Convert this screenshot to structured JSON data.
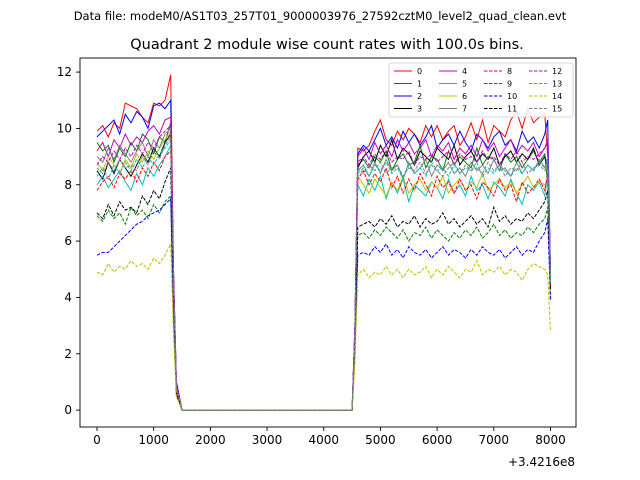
{
  "supertitle": "Data file: modeM0/AS1T03_257T01_9000003976_27592cztM0_level2_quad_clean.evt",
  "chart_data": {
    "type": "line",
    "title": "Quadrant 2 module wise count rates with 100.0s bins.",
    "xlabel": "",
    "ylabel": "",
    "x_offset_label": "+3.4216e8",
    "xlim": [
      -300,
      8450
    ],
    "ylim": [
      -0.6,
      12.5
    ],
    "xticks": [
      0,
      1000,
      2000,
      3000,
      4000,
      5000,
      6000,
      7000,
      8000
    ],
    "yticks": [
      0,
      2,
      4,
      6,
      8,
      10,
      12
    ],
    "grid": false,
    "legend_position": "top-right",
    "x": [
      0,
      100,
      200,
      300,
      400,
      500,
      600,
      700,
      800,
      900,
      1000,
      1100,
      1200,
      1300,
      1350,
      1400,
      1500,
      1600,
      1700,
      1800,
      1900,
      2000,
      2200,
      2500,
      3000,
      3500,
      4000,
      4400,
      4500,
      4550,
      4600,
      4700,
      4800,
      4900,
      5000,
      5100,
      5200,
      5300,
      5400,
      5500,
      5600,
      5700,
      5800,
      5900,
      6000,
      6100,
      6200,
      6300,
      6400,
      6500,
      6600,
      6700,
      6800,
      6900,
      7000,
      7100,
      7200,
      7300,
      7400,
      7500,
      7600,
      7700,
      7800,
      7900,
      7950,
      8000
    ],
    "series": [
      {
        "name": "0",
        "color": "#ff0000",
        "dash": "solid",
        "values": [
          9.9,
          10.1,
          9.7,
          10.2,
          10.0,
          10.9,
          10.8,
          10.7,
          10.4,
          10.2,
          10.9,
          10.8,
          11.0,
          11.9,
          5.0,
          1.0,
          0,
          0,
          0,
          0,
          0,
          0,
          0,
          0,
          0,
          0,
          0,
          0,
          0,
          3.0,
          9.3,
          9.2,
          9.4,
          9.9,
          10.3,
          9.6,
          9.4,
          9.9,
          9.6,
          10.0,
          9.8,
          9.5,
          10.1,
          9.7,
          10.1,
          9.6,
          9.9,
          10.1,
          9.4,
          9.7,
          10.2,
          9.6,
          10.3,
          9.5,
          10.1,
          9.9,
          9.7,
          10.3,
          10.6,
          10.0,
          10.7,
          10.2,
          10.4,
          10.5,
          9.0,
          5.0
        ]
      },
      {
        "name": "1",
        "color": "#008000",
        "dash": "solid",
        "values": [
          9.5,
          9.2,
          9.4,
          8.8,
          9.3,
          9.0,
          9.5,
          9.2,
          9.8,
          9.6,
          9.1,
          9.7,
          9.5,
          10.2,
          4.5,
          0.8,
          0,
          0,
          0,
          0,
          0,
          0,
          0,
          0,
          0,
          0,
          0,
          0,
          0,
          2.8,
          8.7,
          8.9,
          8.6,
          9.0,
          8.8,
          9.2,
          8.5,
          8.9,
          9.1,
          8.7,
          8.8,
          9.4,
          8.6,
          9.0,
          8.9,
          8.5,
          9.2,
          8.7,
          9.0,
          8.8,
          8.6,
          9.3,
          8.7,
          9.0,
          8.9,
          8.5,
          9.1,
          8.8,
          9.0,
          8.6,
          8.9,
          9.2,
          8.8,
          9.1,
          8.0,
          4.6
        ]
      },
      {
        "name": "2",
        "color": "#0000ff",
        "dash": "solid",
        "values": [
          9.7,
          9.9,
          10.1,
          10.3,
          9.8,
          10.5,
          10.2,
          10.6,
          10.4,
          10.0,
          10.8,
          10.9,
          10.7,
          11.0,
          4.9,
          1.0,
          0,
          0,
          0,
          0,
          0,
          0,
          0,
          0,
          0,
          0,
          0,
          0,
          0,
          3.0,
          9.1,
          9.4,
          9.2,
          9.6,
          10.0,
          9.4,
          9.7,
          9.3,
          9.9,
          9.5,
          9.8,
          9.4,
          9.7,
          10.1,
          9.3,
          9.6,
          9.8,
          9.4,
          9.9,
          9.5,
          9.2,
          9.8,
          9.6,
          9.3,
          9.7,
          9.9,
          9.4,
          9.6,
          9.2,
          9.9,
          9.5,
          9.7,
          9.3,
          9.8,
          10.3,
          4.8
        ]
      },
      {
        "name": "3",
        "color": "#000000",
        "dash": "solid",
        "values": [
          8.5,
          8.2,
          8.8,
          8.4,
          8.9,
          8.6,
          8.3,
          8.7,
          9.1,
          8.8,
          9.3,
          9.0,
          9.5,
          9.8,
          4.3,
          0.7,
          0,
          0,
          0,
          0,
          0,
          0,
          0,
          0,
          0,
          0,
          0,
          0,
          0,
          2.7,
          8.6,
          9.0,
          9.2,
          8.8,
          9.4,
          9.0,
          9.6,
          8.9,
          9.3,
          9.1,
          8.7,
          9.2,
          9.0,
          8.8,
          9.3,
          9.1,
          8.9,
          9.4,
          8.7,
          9.0,
          9.2,
          8.8,
          9.1,
          8.9,
          9.3,
          8.7,
          9.0,
          9.2,
          8.8,
          9.1,
          8.9,
          9.3,
          8.7,
          9.0,
          8.6,
          4.5
        ]
      },
      {
        "name": "4",
        "color": "#bf00bf",
        "dash": "solid",
        "values": [
          9.2,
          9.5,
          9.0,
          9.6,
          9.3,
          9.8,
          9.4,
          9.7,
          9.5,
          9.9,
          10.1,
          9.8,
          10.3,
          10.4,
          4.7,
          0.9,
          0,
          0,
          0,
          0,
          0,
          0,
          0,
          0,
          0,
          0,
          0,
          0,
          0,
          2.9,
          9.0,
          9.3,
          8.9,
          9.5,
          9.1,
          9.4,
          9.0,
          9.6,
          9.2,
          9.5,
          9.1,
          9.3,
          9.6,
          9.0,
          9.4,
          9.2,
          9.5,
          8.9,
          9.3,
          9.1,
          9.4,
          9.0,
          9.6,
          9.2,
          9.5,
          9.0,
          9.3,
          9.6,
          9.1,
          9.4,
          9.2,
          9.5,
          9.0,
          9.3,
          9.6,
          4.7
        ]
      },
      {
        "name": "5",
        "color": "#00bfbf",
        "dash": "solid",
        "values": [
          8.0,
          8.3,
          7.9,
          8.2,
          8.5,
          8.1,
          7.8,
          8.4,
          8.0,
          8.6,
          8.3,
          8.7,
          9.0,
          9.4,
          4.2,
          0.7,
          0,
          0,
          0,
          0,
          0,
          0,
          0,
          0,
          0,
          0,
          0,
          0,
          0,
          2.5,
          8.0,
          7.6,
          8.2,
          7.8,
          8.3,
          7.5,
          8.1,
          7.7,
          8.2,
          7.4,
          8.0,
          7.8,
          7.6,
          8.1,
          7.9,
          7.5,
          8.2,
          7.7,
          8.0,
          7.6,
          8.3,
          7.8,
          8.0,
          7.5,
          8.1,
          7.9,
          7.6,
          8.2,
          7.7,
          7.3,
          8.0,
          7.8,
          8.1,
          7.6,
          8.4,
          4.5
        ]
      },
      {
        "name": "6",
        "color": "#bfbf00",
        "dash": "solid",
        "values": [
          8.8,
          8.5,
          9.0,
          8.7,
          8.4,
          8.9,
          8.6,
          9.1,
          8.8,
          9.2,
          8.9,
          9.3,
          9.6,
          9.9,
          4.4,
          0.8,
          0,
          0,
          0,
          0,
          0,
          0,
          0,
          0,
          0,
          0,
          0,
          0,
          0,
          2.6,
          8.3,
          8.0,
          7.7,
          8.2,
          7.9,
          7.6,
          8.1,
          7.8,
          8.3,
          7.7,
          8.0,
          8.2,
          7.8,
          8.1,
          7.9,
          8.3,
          7.7,
          8.0,
          8.2,
          7.8,
          8.1,
          7.9,
          8.4,
          7.8,
          8.0,
          8.2,
          7.9,
          8.1,
          7.7,
          8.0,
          8.3,
          7.9,
          8.1,
          8.0,
          8.2,
          4.4
        ]
      },
      {
        "name": "7",
        "color": "#808080",
        "dash": "solid",
        "values": [
          9.0,
          8.8,
          9.3,
          8.9,
          9.4,
          9.1,
          8.8,
          9.2,
          9.5,
          9.0,
          9.6,
          9.3,
          9.8,
          10.0,
          4.5,
          0.8,
          0,
          0,
          0,
          0,
          0,
          0,
          0,
          0,
          0,
          0,
          0,
          0,
          0,
          2.7,
          8.5,
          8.7,
          8.3,
          8.8,
          8.4,
          8.9,
          8.5,
          8.7,
          8.2,
          8.8,
          8.4,
          8.6,
          8.9,
          8.3,
          8.7,
          8.5,
          8.8,
          8.4,
          8.6,
          8.3,
          8.8,
          8.5,
          8.7,
          8.4,
          8.9,
          8.5,
          8.6,
          8.3,
          8.8,
          8.4,
          8.7,
          8.5,
          8.9,
          8.6,
          8.8,
          4.5
        ]
      },
      {
        "name": "8",
        "color": "#ff0000",
        "dash": "dashed",
        "values": [
          7.8,
          8.1,
          8.3,
          7.9,
          8.4,
          8.2,
          8.5,
          8.1,
          8.6,
          8.3,
          8.8,
          8.5,
          9.0,
          9.2,
          4.1,
          0.7,
          0,
          0,
          0,
          0,
          0,
          0,
          0,
          0,
          0,
          0,
          0,
          0,
          0,
          2.6,
          8.2,
          8.5,
          8.0,
          8.4,
          8.1,
          8.6,
          7.9,
          8.3,
          7.7,
          8.2,
          7.8,
          8.4,
          8.0,
          7.6,
          8.3,
          7.9,
          8.1,
          7.7,
          8.2,
          7.8,
          8.0,
          7.5,
          8.1,
          7.9,
          7.6,
          8.2,
          7.8,
          8.0,
          7.4,
          8.1,
          7.7,
          7.9,
          8.2,
          7.8,
          8.4,
          4.3
        ]
      },
      {
        "name": "9",
        "color": "#008000",
        "dash": "dashed",
        "values": [
          6.9,
          6.7,
          7.1,
          6.8,
          7.0,
          6.6,
          7.2,
          6.9,
          7.1,
          6.8,
          7.3,
          7.0,
          7.4,
          7.6,
          3.4,
          0.6,
          0,
          0,
          0,
          0,
          0,
          0,
          0,
          0,
          0,
          0,
          0,
          0,
          0,
          2.1,
          6.2,
          6.3,
          6.1,
          6.4,
          6.2,
          6.5,
          6.3,
          6.1,
          6.4,
          6.0,
          6.3,
          6.2,
          6.5,
          6.1,
          6.4,
          6.2,
          6.0,
          6.3,
          6.1,
          6.4,
          6.2,
          6.5,
          6.1,
          6.3,
          6.6,
          6.2,
          6.4,
          6.1,
          6.3,
          6.2,
          6.5,
          6.3,
          6.6,
          6.8,
          7.2,
          4.0
        ]
      },
      {
        "name": "10",
        "color": "#0000ff",
        "dash": "dashed",
        "values": [
          5.5,
          5.6,
          5.6,
          5.8,
          6.0,
          6.2,
          6.4,
          6.6,
          6.7,
          6.9,
          7.0,
          7.1,
          7.3,
          7.5,
          3.3,
          0.5,
          0,
          0,
          0,
          0,
          0,
          0,
          0,
          0,
          0,
          0,
          0,
          0,
          0,
          1.9,
          5.5,
          5.6,
          5.5,
          5.8,
          5.6,
          5.9,
          5.5,
          5.7,
          5.4,
          5.8,
          5.6,
          5.5,
          5.7,
          5.4,
          5.6,
          5.8,
          5.5,
          5.7,
          5.6,
          5.4,
          5.7,
          5.5,
          5.8,
          5.6,
          5.5,
          5.7,
          5.4,
          5.6,
          5.8,
          5.5,
          5.7,
          5.6,
          6.0,
          6.3,
          6.8,
          3.9
        ]
      },
      {
        "name": "11",
        "color": "#000000",
        "dash": "dashed",
        "values": [
          7.0,
          6.8,
          7.3,
          6.9,
          7.4,
          7.1,
          7.2,
          7.0,
          7.6,
          7.3,
          7.8,
          7.5,
          8.1,
          8.6,
          3.8,
          0.6,
          0,
          0,
          0,
          0,
          0,
          0,
          0,
          0,
          0,
          0,
          0,
          0,
          0,
          2.2,
          6.5,
          6.6,
          6.7,
          6.5,
          6.8,
          6.6,
          6.9,
          6.5,
          6.7,
          6.6,
          6.9,
          6.5,
          6.8,
          6.6,
          6.7,
          7.0,
          6.6,
          6.8,
          6.5,
          6.7,
          6.9,
          6.6,
          6.8,
          6.5,
          7.2,
          6.7,
          6.9,
          6.6,
          6.8,
          6.7,
          7.0,
          6.8,
          7.1,
          7.4,
          7.8,
          4.3
        ]
      },
      {
        "name": "12",
        "color": "#bf00bf",
        "dash": "dashed",
        "values": [
          8.7,
          9.0,
          8.8,
          9.2,
          8.9,
          9.3,
          9.0,
          9.4,
          9.1,
          9.5,
          9.3,
          9.7,
          9.9,
          10.1,
          4.6,
          0.9,
          0,
          0,
          0,
          0,
          0,
          0,
          0,
          0,
          0,
          0,
          0,
          0,
          0,
          2.8,
          8.8,
          9.0,
          8.7,
          9.1,
          8.9,
          9.2,
          8.8,
          9.0,
          8.9,
          9.2,
          8.7,
          9.0,
          8.9,
          9.1,
          8.8,
          9.0,
          9.2,
          8.7,
          9.1,
          8.9,
          9.0,
          8.8,
          9.2,
          8.9,
          9.0,
          8.7,
          9.1,
          8.9,
          9.2,
          8.8,
          9.0,
          8.9,
          9.1,
          9.3,
          9.6,
          4.6
        ]
      },
      {
        "name": "13",
        "color": "#00bfbf",
        "dash": "dashed",
        "values": [
          8.3,
          8.6,
          8.2,
          8.7,
          8.4,
          8.8,
          8.5,
          8.9,
          8.6,
          9.0,
          8.7,
          9.1,
          9.3,
          9.6,
          4.3,
          0.8,
          0,
          0,
          0,
          0,
          0,
          0,
          0,
          0,
          0,
          0,
          0,
          0,
          0,
          2.6,
          8.4,
          8.6,
          8.3,
          8.7,
          8.5,
          8.8,
          8.4,
          8.6,
          8.2,
          8.7,
          8.4,
          8.6,
          8.3,
          8.8,
          8.5,
          8.6,
          8.3,
          8.7,
          8.4,
          8.6,
          8.5,
          8.8,
          8.3,
          8.6,
          8.4,
          8.7,
          8.5,
          8.3,
          8.6,
          8.4,
          8.7,
          8.5,
          8.8,
          8.6,
          9.0,
          4.5
        ]
      },
      {
        "name": "14",
        "color": "#bfbf00",
        "dash": "dashed",
        "values": [
          4.9,
          4.8,
          5.2,
          4.9,
          5.1,
          5.0,
          5.3,
          5.1,
          5.2,
          5.0,
          5.4,
          5.2,
          5.5,
          5.9,
          2.7,
          0.5,
          0,
          0,
          0,
          0,
          0,
          0,
          0,
          0,
          0,
          0,
          0,
          0,
          0,
          1.7,
          4.8,
          5.0,
          4.7,
          4.9,
          4.8,
          5.1,
          4.8,
          5.0,
          4.7,
          5.0,
          4.8,
          4.9,
          5.1,
          4.7,
          5.0,
          4.8,
          5.1,
          4.9,
          4.7,
          5.0,
          4.9,
          5.3,
          4.8,
          5.0,
          4.9,
          5.1,
          4.8,
          5.0,
          4.9,
          4.6,
          5.0,
          5.2,
          5.1,
          5.0,
          4.8,
          2.8
        ]
      },
      {
        "name": "15",
        "color": "#808080",
        "dash": "dashed",
        "values": [
          8.6,
          8.4,
          8.8,
          8.5,
          8.9,
          8.6,
          8.7,
          8.5,
          9.0,
          8.7,
          9.2,
          8.9,
          9.4,
          9.7,
          4.4,
          0.8,
          0,
          0,
          0,
          0,
          0,
          0,
          0,
          0,
          0,
          0,
          0,
          0,
          0,
          2.7,
          8.6,
          8.4,
          8.7,
          8.5,
          8.8,
          8.4,
          8.6,
          8.7,
          8.3,
          8.6,
          8.5,
          8.8,
          8.4,
          8.7,
          8.5,
          8.3,
          8.6,
          8.8,
          8.4,
          8.7,
          8.5,
          8.6,
          8.4,
          8.8,
          8.5,
          8.7,
          8.3,
          8.6,
          8.5,
          8.8,
          8.4,
          8.6,
          8.7,
          8.5,
          8.8,
          4.5
        ]
      }
    ]
  }
}
